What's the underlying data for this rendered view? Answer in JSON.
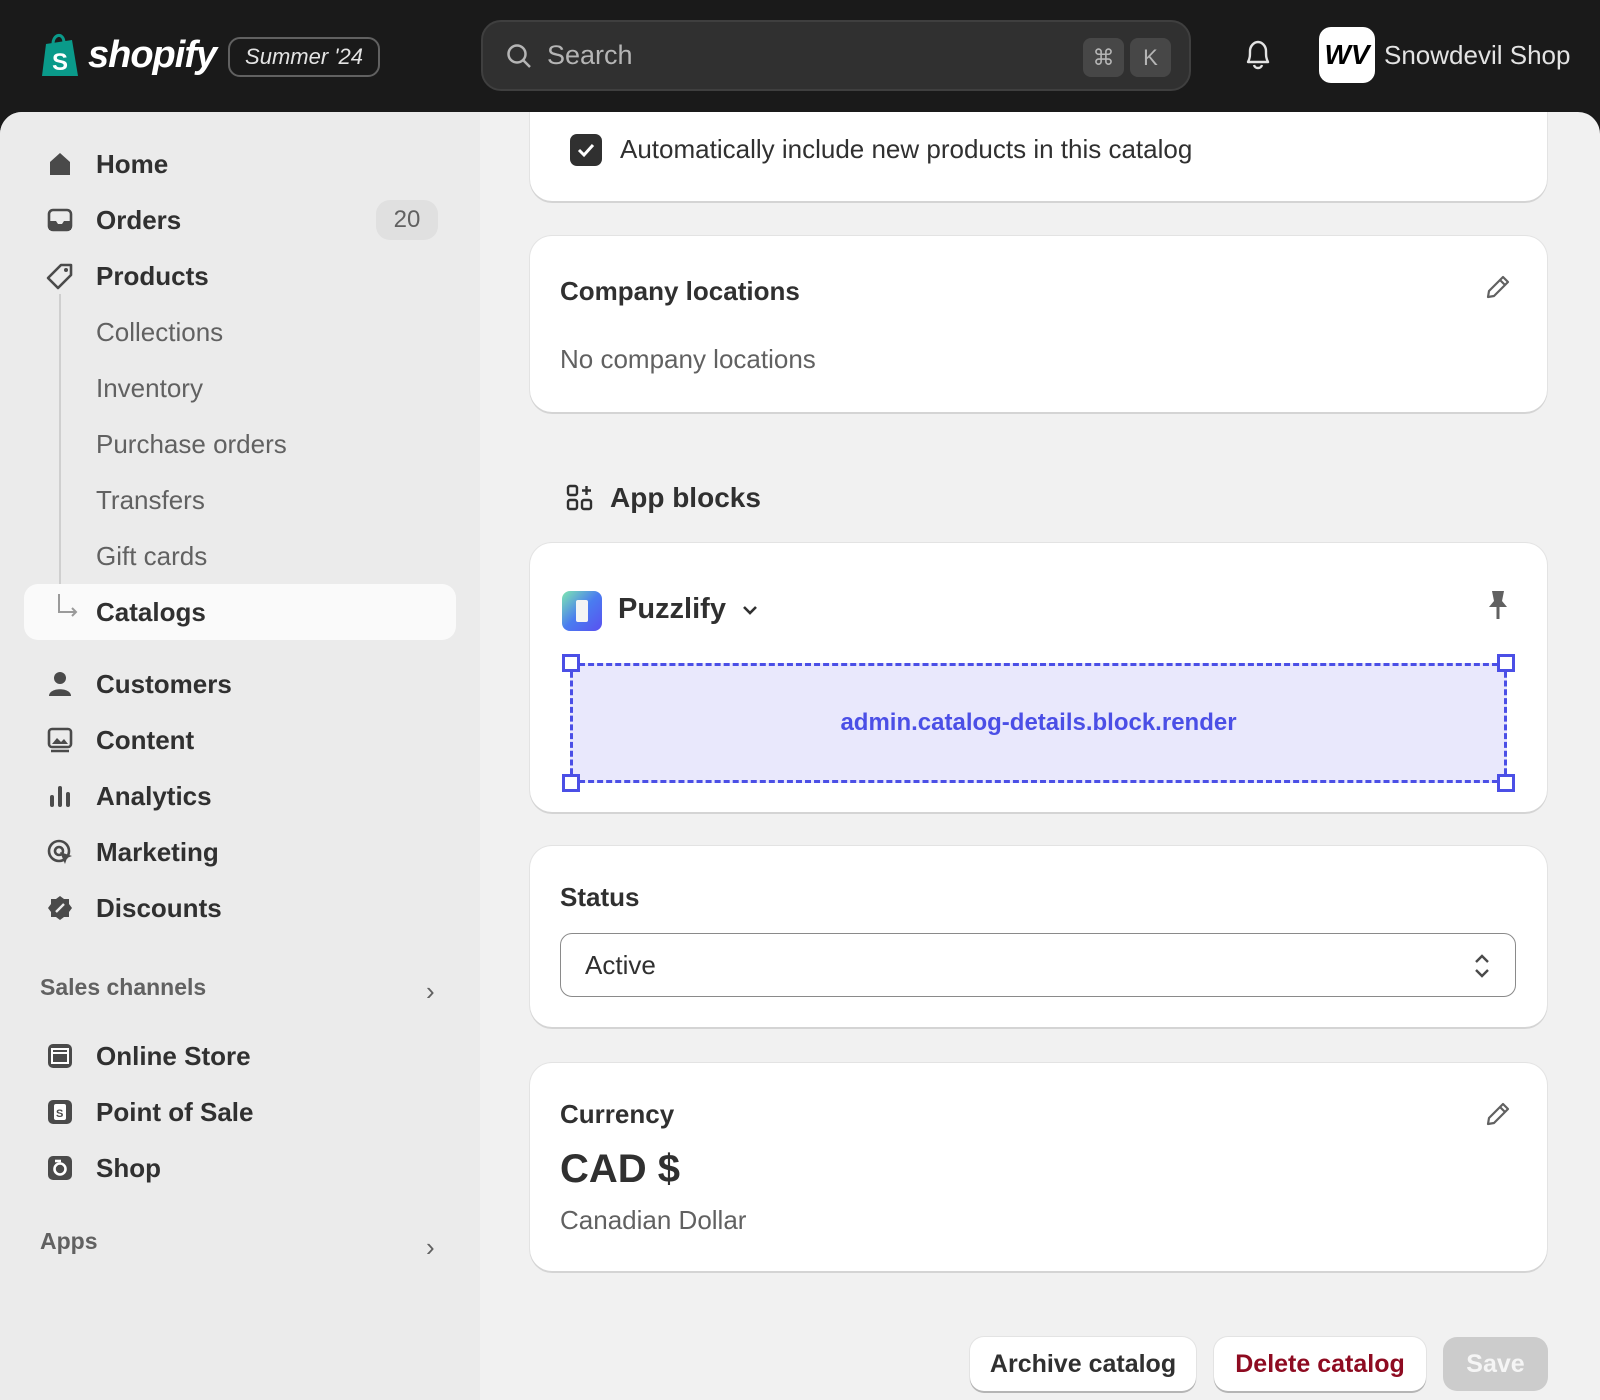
{
  "topbar": {
    "brand": "shopify",
    "edition_badge": "Summer '24",
    "search_placeholder": "Search",
    "shortcut_keys": [
      "⌘",
      "K"
    ],
    "store_name": "Snowdevil Shop",
    "store_avatar": "WV"
  },
  "sidebar": {
    "items": [
      {
        "label": "Home",
        "icon": "home-icon"
      },
      {
        "label": "Orders",
        "icon": "inbox-icon",
        "count": "20"
      },
      {
        "label": "Products",
        "icon": "tag-icon"
      },
      {
        "label": "Collections"
      },
      {
        "label": "Inventory"
      },
      {
        "label": "Purchase orders"
      },
      {
        "label": "Transfers"
      },
      {
        "label": "Gift cards"
      },
      {
        "label": "Catalogs",
        "active": true
      },
      {
        "label": "Customers",
        "icon": "person-icon"
      },
      {
        "label": "Content",
        "icon": "image-icon"
      },
      {
        "label": "Analytics",
        "icon": "bar-chart-icon"
      },
      {
        "label": "Marketing",
        "icon": "target-icon"
      },
      {
        "label": "Discounts",
        "icon": "discount-icon"
      }
    ],
    "sales_channels_label": "Sales channels",
    "channels": [
      {
        "label": "Online Store",
        "icon": "store-icon"
      },
      {
        "label": "Point of Sale",
        "icon": "pos-icon"
      },
      {
        "label": "Shop",
        "icon": "shop-icon"
      }
    ],
    "apps_label": "Apps"
  },
  "main": {
    "auto_include": {
      "label": "Automatically include new products in this catalog",
      "checked": true
    },
    "company_locations": {
      "title": "Company locations",
      "empty_text": "No company locations"
    },
    "app_blocks": {
      "heading": "App blocks",
      "app_name": "Puzzlify",
      "target": "admin.catalog-details.block.render",
      "accent": "#4b4fe6"
    },
    "status": {
      "title": "Status",
      "value": "Active"
    },
    "currency": {
      "title": "Currency",
      "code": "CAD $",
      "name": "Canadian Dollar"
    },
    "actions": {
      "archive": "Archive catalog",
      "delete": "Delete catalog",
      "save": "Save"
    }
  }
}
